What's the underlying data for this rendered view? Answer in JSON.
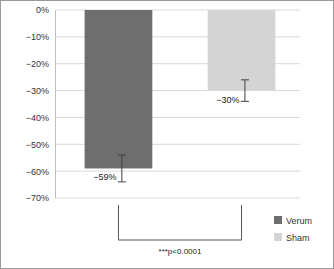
{
  "chart_data": {
    "type": "bar",
    "categories": [
      null,
      null
    ],
    "series": [
      {
        "name": "Verum",
        "color": "#6e6e6e",
        "values": [
          -59,
          null
        ],
        "errors": [
          5,
          null
        ],
        "value_labels": [
          "−59%",
          null
        ]
      },
      {
        "name": "Sham",
        "color": "#d4d4d4",
        "values": [
          null,
          -30
        ],
        "errors": [
          null,
          4
        ],
        "value_labels": [
          null,
          "−30%"
        ]
      }
    ],
    "ylim": [
      -70,
      0
    ],
    "yticks": [
      {
        "value": 0,
        "label": "0%"
      },
      {
        "value": -10,
        "label": "−10%"
      },
      {
        "value": -20,
        "label": "−20%"
      },
      {
        "value": -30,
        "label": "−30%"
      },
      {
        "value": -40,
        "label": "−40%"
      },
      {
        "value": -50,
        "label": "−50%"
      },
      {
        "value": -60,
        "label": "−60%"
      },
      {
        "value": -70,
        "label": "−70%"
      }
    ],
    "grid": true,
    "legend": "lower right",
    "data_labels": true,
    "tick_labels": "y",
    "annotation": "***p<0.0001"
  }
}
